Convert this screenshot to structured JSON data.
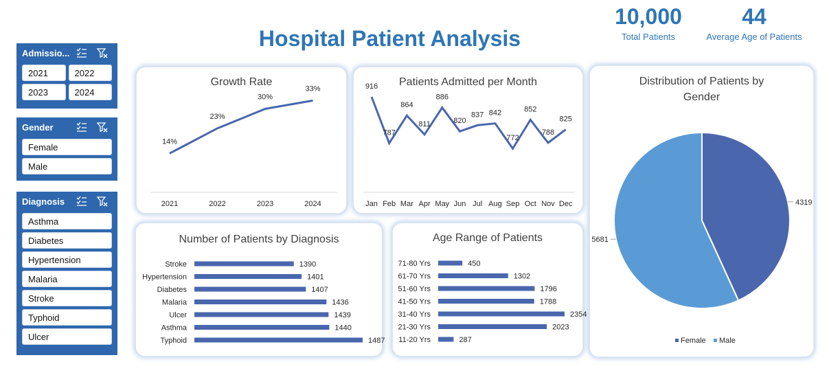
{
  "header": {
    "title": "Hospital Patient Analysis",
    "kpis": [
      {
        "value": "10,000",
        "label": "Total Patients"
      },
      {
        "value": "44",
        "label": "Average Age of Patients"
      }
    ]
  },
  "slicers": {
    "admission": {
      "title": "Admissio...",
      "items": [
        "2021",
        "2022",
        "2023",
        "2024"
      ]
    },
    "gender": {
      "title": "Gender",
      "items": [
        "Female",
        "Male"
      ]
    },
    "diagnosis": {
      "title": "Diagnosis",
      "items": [
        "Asthma",
        "Diabetes",
        "Hypertension",
        "Malaria",
        "Stroke",
        "Typhoid",
        "Ulcer"
      ]
    }
  },
  "colors": {
    "accent": "#2e75b6",
    "slicer": "#2e67ad",
    "series": "#4a67ad",
    "male": "#5b9bd5"
  },
  "icons": {
    "multi_select": "multi-select-icon",
    "clear_filter": "clear-filter-icon"
  },
  "chart_data": [
    {
      "type": "line",
      "title": "Growth Rate",
      "categories": [
        "2021",
        "2022",
        "2023",
        "2024"
      ],
      "values": [
        14,
        23,
        30,
        33
      ],
      "labels": [
        "14%",
        "23%",
        "30%",
        "33%"
      ]
    },
    {
      "type": "line",
      "title": "Patients Admitted per Month",
      "categories": [
        "Jan",
        "Feb",
        "Mar",
        "Apr",
        "May",
        "Jun",
        "Jul",
        "Aug",
        "Sep",
        "Oct",
        "Nov",
        "Dec"
      ],
      "values": [
        916,
        787,
        864,
        811,
        886,
        820,
        837,
        842,
        772,
        852,
        788,
        825
      ]
    },
    {
      "type": "pie",
      "title": "Distribution of Patients by Gender",
      "categories": [
        "Female",
        "Male"
      ],
      "values": [
        4319,
        5681
      ],
      "legend": "bottom"
    },
    {
      "type": "bar",
      "title": "Number of Patients by Diagnosis",
      "categories": [
        "Stroke",
        "Hypertension",
        "Diabetes",
        "Malaria",
        "Ulcer",
        "Asthma",
        "Typhoid"
      ],
      "values": [
        1390,
        1401,
        1407,
        1436,
        1439,
        1440,
        1487
      ]
    },
    {
      "type": "bar",
      "title": "Age Range of Patients",
      "categories": [
        "71-80 Yrs",
        "61-70 Yrs",
        "51-60 Yrs",
        "41-50 Yrs",
        "31-40 Yrs",
        "21-30 Yrs",
        "11-20 Yrs"
      ],
      "values": [
        450,
        1302,
        1796,
        1788,
        2354,
        2023,
        287
      ]
    }
  ]
}
